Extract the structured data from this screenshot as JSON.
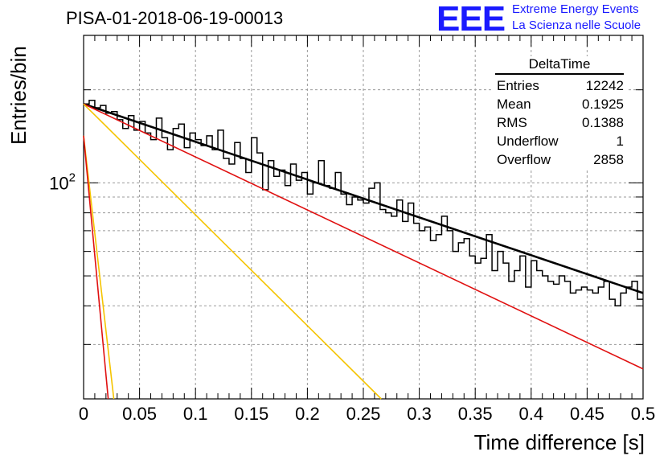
{
  "title": "PISA-01-2018-06-19-00013",
  "logo": {
    "mark": "EEE",
    "line1": "Extreme Energy Events",
    "line2": "La Scienza nelle Scuole",
    "color": "#1a1aff"
  },
  "stats": {
    "name": "DeltaTime",
    "rows": [
      {
        "label": "Entries",
        "value": "12242"
      },
      {
        "label": "Mean",
        "value": "0.1925"
      },
      {
        "label": "RMS",
        "value": "0.1388"
      },
      {
        "label": "Underflow",
        "value": "1"
      },
      {
        "label": "Overflow",
        "value": "2858"
      }
    ]
  },
  "chart_data": {
    "type": "line",
    "title": "PISA-01-2018-06-19-00013",
    "xlabel": "Time difference [s]",
    "ylabel": "Entries/bin",
    "xlim": [
      0,
      0.5
    ],
    "ylim": [
      20,
      300
    ],
    "yscale": "log",
    "grid": true,
    "xticks": [
      "0",
      "0.05",
      "0.1",
      "0.15",
      "0.2",
      "0.25",
      "0.3",
      "0.35",
      "0.4",
      "0.45",
      "0.5"
    ],
    "yticks": [
      {
        "value": 100,
        "label": "10^2"
      }
    ],
    "histogram": {
      "name": "DeltaTime",
      "color": "#000000",
      "bin_width": 0.005,
      "x": [
        0.0,
        0.005,
        0.01,
        0.015,
        0.02,
        0.025,
        0.03,
        0.035,
        0.04,
        0.045,
        0.05,
        0.055,
        0.06,
        0.065,
        0.07,
        0.075,
        0.08,
        0.085,
        0.09,
        0.095,
        0.1,
        0.105,
        0.11,
        0.115,
        0.12,
        0.125,
        0.13,
        0.135,
        0.14,
        0.145,
        0.15,
        0.155,
        0.16,
        0.165,
        0.17,
        0.175,
        0.18,
        0.185,
        0.19,
        0.195,
        0.2,
        0.205,
        0.21,
        0.215,
        0.22,
        0.225,
        0.23,
        0.235,
        0.24,
        0.245,
        0.25,
        0.255,
        0.26,
        0.265,
        0.27,
        0.275,
        0.28,
        0.285,
        0.29,
        0.295,
        0.3,
        0.305,
        0.31,
        0.315,
        0.32,
        0.325,
        0.33,
        0.335,
        0.34,
        0.345,
        0.35,
        0.355,
        0.36,
        0.365,
        0.37,
        0.375,
        0.38,
        0.385,
        0.39,
        0.395,
        0.4,
        0.405,
        0.41,
        0.415,
        0.42,
        0.425,
        0.43,
        0.435,
        0.44,
        0.445,
        0.45,
        0.455,
        0.46,
        0.465,
        0.47,
        0.475,
        0.48,
        0.485,
        0.49,
        0.495
      ],
      "values": [
        180,
        185,
        175,
        178,
        168,
        170,
        160,
        150,
        165,
        148,
        158,
        145,
        138,
        162,
        140,
        128,
        150,
        155,
        130,
        145,
        138,
        132,
        142,
        128,
        148,
        120,
        115,
        135,
        120,
        108,
        140,
        125,
        95,
        118,
        105,
        110,
        98,
        115,
        102,
        108,
        92,
        100,
        118,
        98,
        96,
        108,
        92,
        85,
        90,
        88,
        86,
        96,
        100,
        82,
        80,
        78,
        88,
        75,
        86,
        74,
        70,
        72,
        65,
        68,
        78,
        70,
        60,
        64,
        66,
        58,
        55,
        57,
        68,
        52,
        60,
        55,
        48,
        52,
        58,
        46,
        56,
        52,
        50,
        48,
        47,
        50,
        48,
        44,
        45,
        46,
        45,
        44,
        46,
        48,
        42,
        40,
        44,
        46,
        48,
        42
      ]
    },
    "series": [
      {
        "name": "total fit",
        "color": "#000000",
        "y0": 180,
        "y_end": 44
      },
      {
        "name": "component 1",
        "color": "#e01010",
        "y0": 180,
        "y_end": 25
      },
      {
        "name": "component 2",
        "color": "#f5c400",
        "y0": 180,
        "y_at_0.266": 20
      },
      {
        "name": "component 3",
        "color": "#f5c400",
        "y0": 142,
        "y_at_0.027": 20
      },
      {
        "name": "component 4",
        "color": "#e01010",
        "y0": 142,
        "y_at_0.022": 20
      }
    ]
  }
}
